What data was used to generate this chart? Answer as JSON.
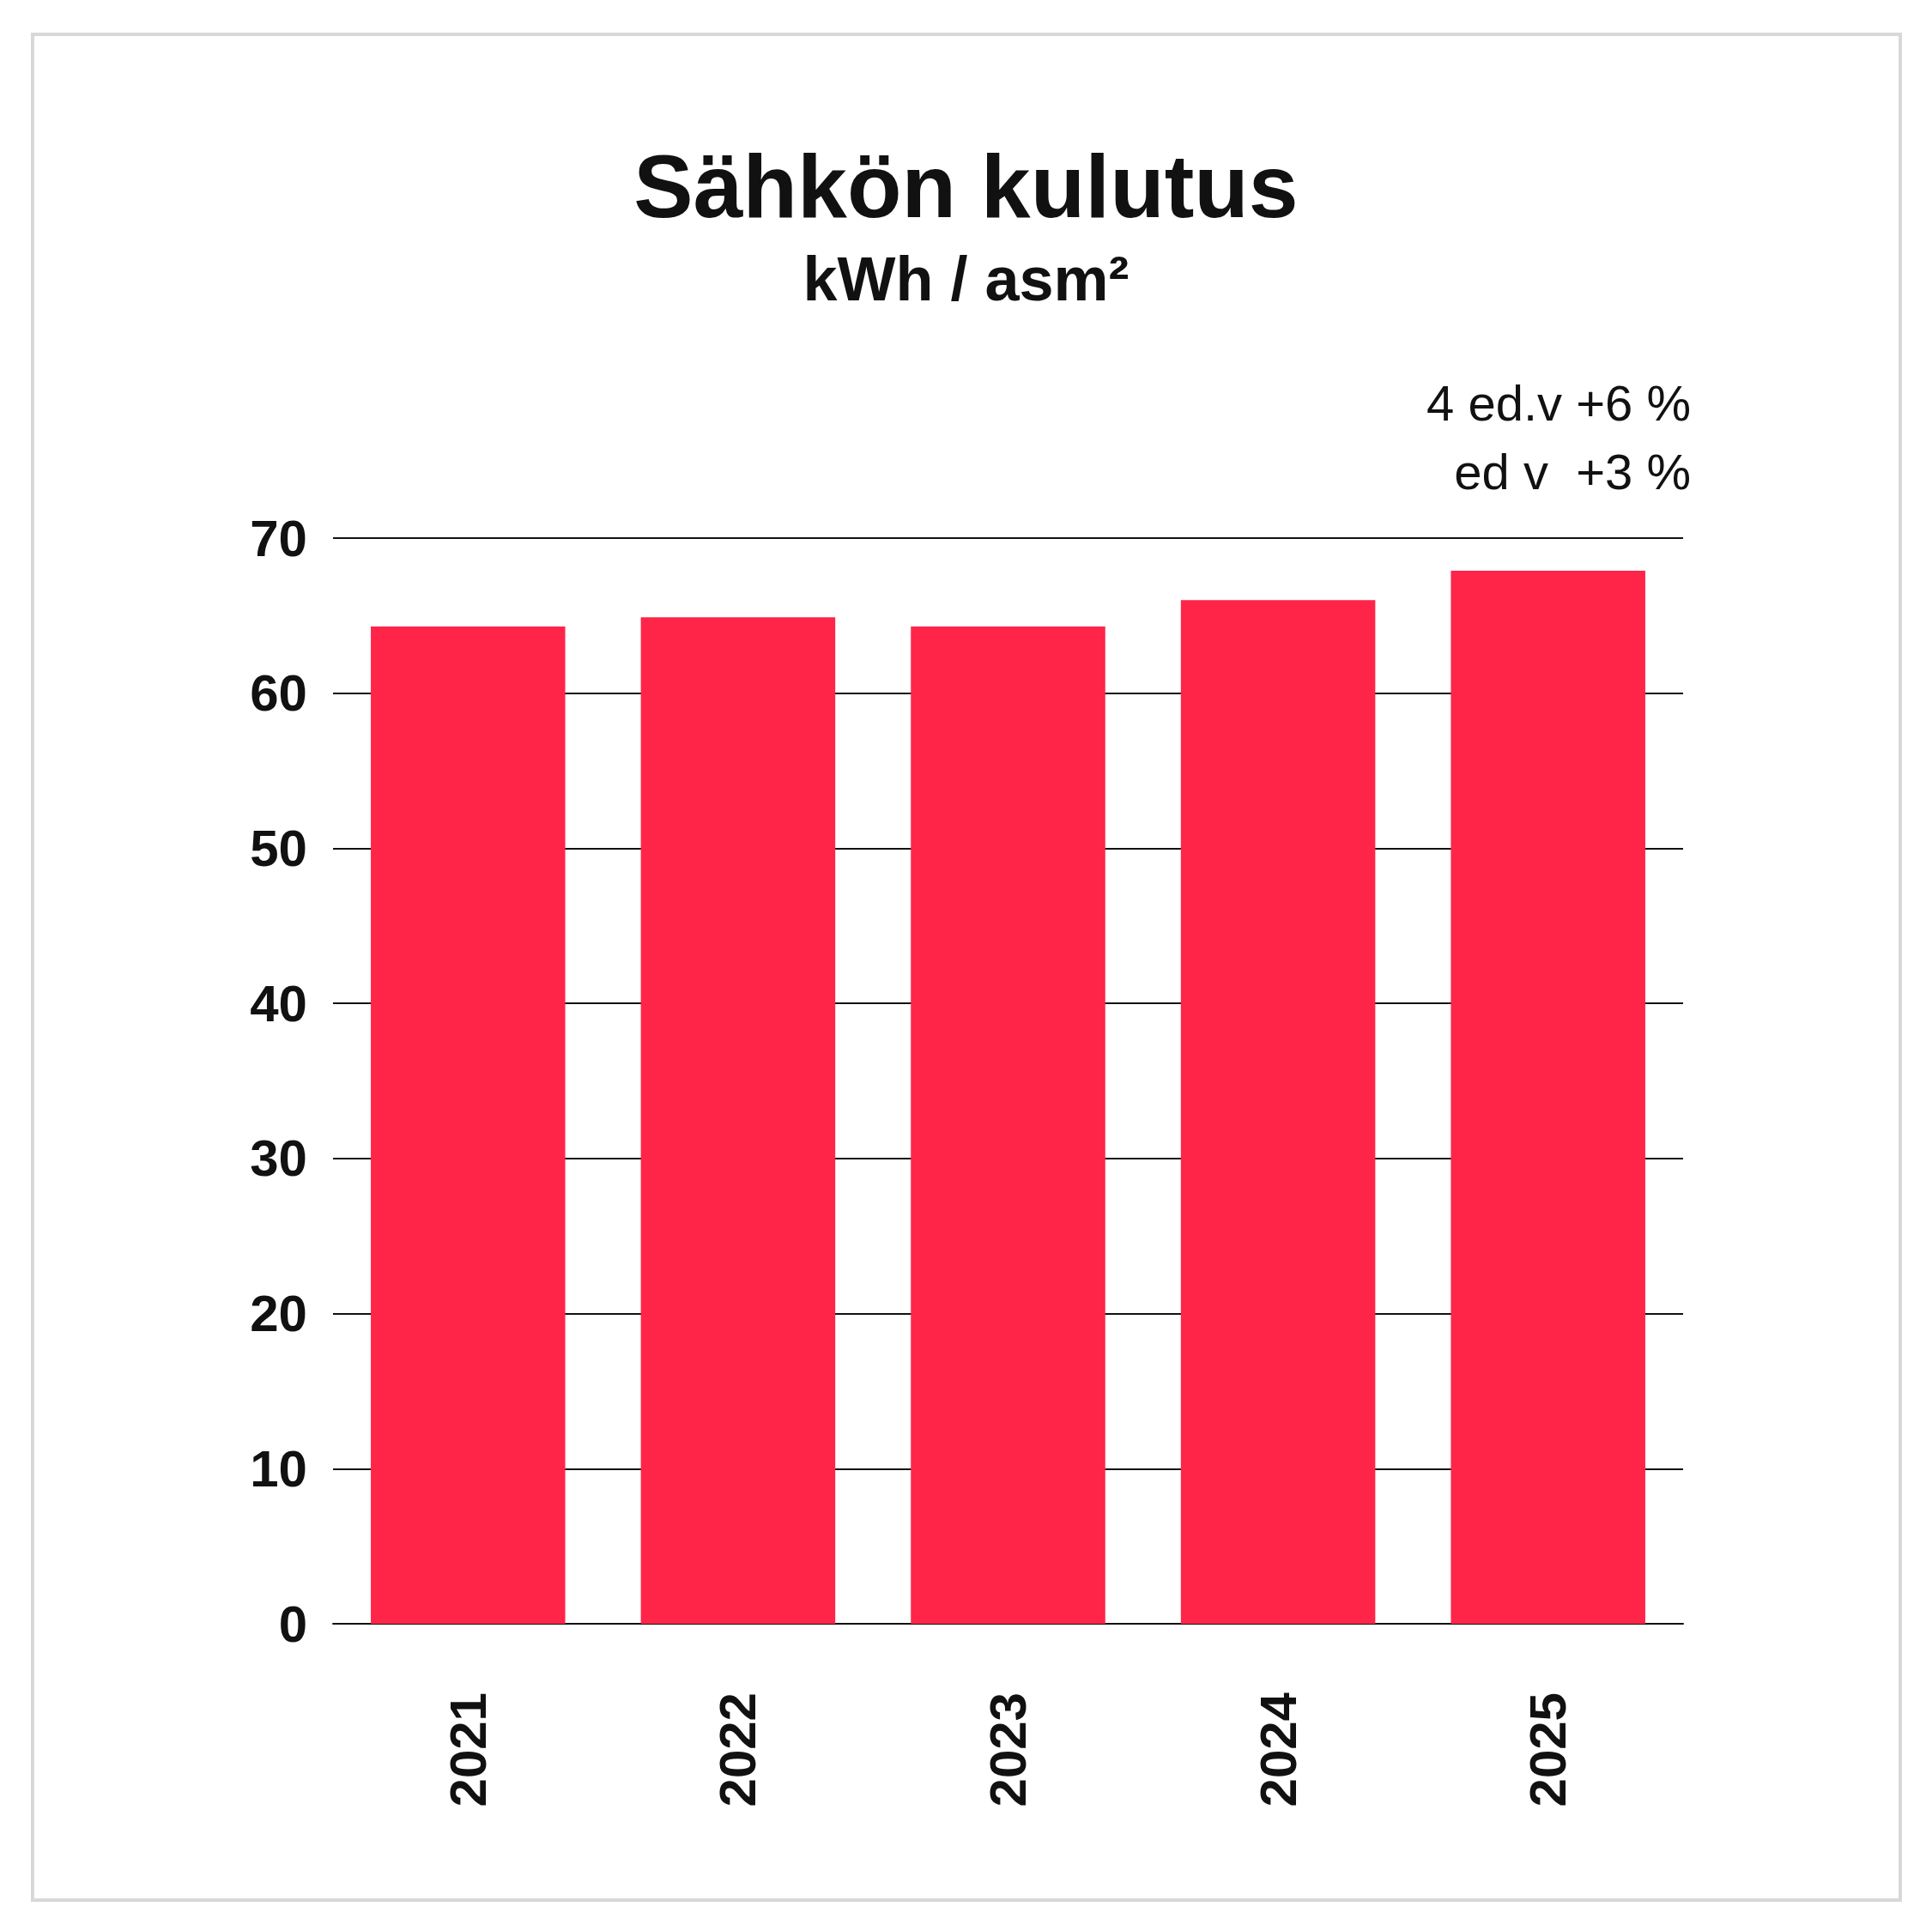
{
  "chart_data": {
    "type": "bar",
    "title": "Sähkön kulutus",
    "subtitle": "kWh / asm²",
    "categories": [
      "2021",
      "2022",
      "2023",
      "2024",
      "2025"
    ],
    "values": [
      64.3,
      64.9,
      64.3,
      66,
      67.9
    ],
    "color": "#ff2549",
    "ylim": [
      0,
      70
    ],
    "yticks": [
      0,
      10,
      20,
      30,
      40,
      50,
      60,
      70
    ],
    "grid": "y",
    "annotations": [
      "4 ed.v +6 %",
      "ed v  +3 %"
    ]
  }
}
